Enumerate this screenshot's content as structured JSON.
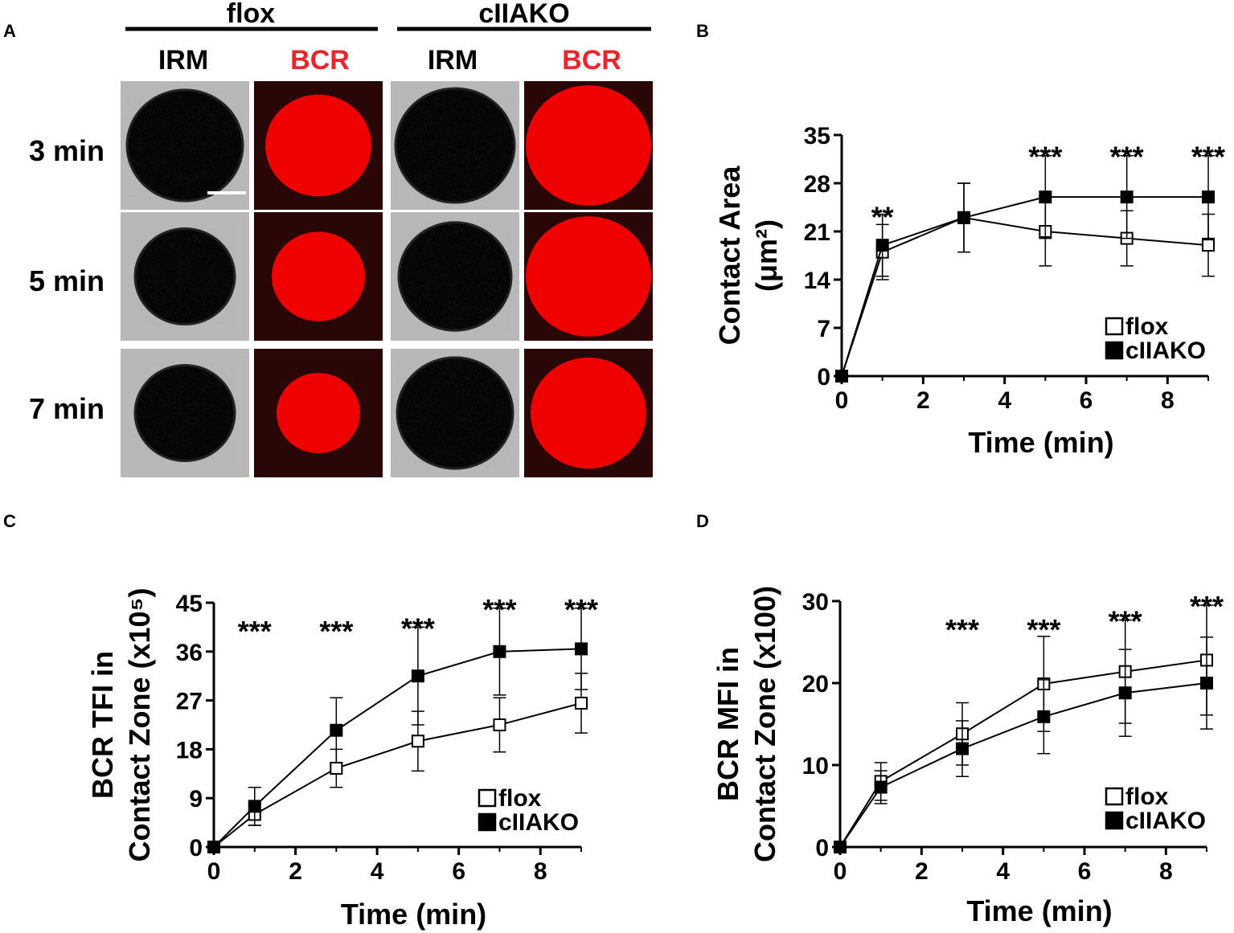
{
  "panel_labels": {
    "a": "A",
    "b": "B",
    "c": "C",
    "d": "D"
  },
  "panel_a": {
    "groups": [
      "flox",
      "cIIAKO"
    ],
    "channels": [
      "IRM",
      "BCR",
      "IRM",
      "BCR"
    ],
    "rows": [
      "3 min",
      "5 min",
      "7 min"
    ],
    "colors": {
      "bcr_label": "#e8262b",
      "bcr_signal": "#ff2020",
      "bcr_bg": "#2a0707",
      "irm_bg": "#b8b8b8",
      "irm_cell": "#3f3f3f"
    }
  },
  "chart_data": [
    {
      "panel": "B",
      "type": "line",
      "xlabel": "Time (min)",
      "ylabel_lines": [
        "Contact Area",
        "(μm²)"
      ],
      "xlim": [
        0,
        9
      ],
      "ylim": [
        0,
        35
      ],
      "xticks": [
        "0",
        "2",
        "4",
        "6",
        "8"
      ],
      "yticks": [
        "0",
        "7",
        "14",
        "21",
        "28",
        "35"
      ],
      "x": [
        0,
        1,
        3,
        5,
        7,
        9
      ],
      "series": [
        {
          "name": "flox",
          "marker": "open-square",
          "values": [
            0,
            18,
            23,
            21,
            20,
            19
          ],
          "err": [
            0,
            4,
            5,
            5,
            4,
            4.5
          ]
        },
        {
          "name": "cIIAKO",
          "marker": "filled-square",
          "values": [
            0,
            19,
            23,
            26,
            26,
            26
          ],
          "err": [
            0,
            4.5,
            5,
            6,
            6,
            6
          ]
        }
      ],
      "annotations": [
        {
          "x": 1,
          "text": "**"
        },
        {
          "x": 5,
          "text": "***"
        },
        {
          "x": 7,
          "text": "***"
        },
        {
          "x": 9,
          "text": "***"
        }
      ],
      "legend": "bottom-right",
      "grid": false
    },
    {
      "panel": "C",
      "type": "line",
      "xlabel": "Time (min)",
      "ylabel_lines": [
        "BCR TFI in",
        "Contact Zone (x10⁵)"
      ],
      "xlim": [
        0,
        9
      ],
      "ylim": [
        0,
        45
      ],
      "xticks": [
        "0",
        "2",
        "4",
        "6",
        "8"
      ],
      "yticks": [
        "0",
        "9",
        "18",
        "27",
        "36",
        "45"
      ],
      "x": [
        0,
        1,
        3,
        5,
        7,
        9
      ],
      "series": [
        {
          "name": "flox",
          "marker": "open-square",
          "values": [
            0,
            6,
            14.5,
            19.5,
            22.5,
            26.5
          ],
          "err": [
            0,
            2,
            3.5,
            5.5,
            5,
            5.5
          ]
        },
        {
          "name": "cIIAKO",
          "marker": "filled-square",
          "values": [
            0,
            7.5,
            21.5,
            31.5,
            36,
            36.5
          ],
          "err": [
            0,
            3.5,
            6,
            9,
            8,
            7.5
          ]
        }
      ],
      "annotations": [
        {
          "x": 1,
          "text": "***"
        },
        {
          "x": 3,
          "text": "***"
        },
        {
          "x": 5,
          "text": "***"
        },
        {
          "x": 7,
          "text": "***"
        },
        {
          "x": 9,
          "text": "***"
        }
      ],
      "legend": "bottom-right",
      "grid": false
    },
    {
      "panel": "D",
      "type": "line",
      "xlabel": "Time (min)",
      "ylabel_lines": [
        "BCR MFI in",
        "Contact Zone (x100)"
      ],
      "xlim": [
        0,
        9
      ],
      "ylim": [
        0,
        30
      ],
      "xticks": [
        "0",
        "2",
        "4",
        "6",
        "8"
      ],
      "yticks": [
        "0",
        "10",
        "20",
        "30"
      ],
      "x": [
        0,
        1,
        3,
        5,
        7,
        9
      ],
      "series": [
        {
          "name": "flox",
          "marker": "open-square",
          "values": [
            0,
            8,
            13.8,
            19.9,
            21.4,
            22.8
          ],
          "err": [
            0,
            2.3,
            3.8,
            5.8,
            6.3,
            6.7
          ]
        },
        {
          "name": "cIIAKO",
          "marker": "filled-square",
          "values": [
            0,
            7.3,
            12,
            15.9,
            18.8,
            20
          ],
          "err": [
            0,
            2,
            3.4,
            4.5,
            5.3,
            5.6
          ]
        }
      ],
      "annotations": [
        {
          "x": 3,
          "text": "***"
        },
        {
          "x": 5,
          "text": "***"
        },
        {
          "x": 7,
          "text": "***"
        },
        {
          "x": 9,
          "text": "***"
        }
      ],
      "legend": "bottom-right",
      "grid": false
    }
  ]
}
